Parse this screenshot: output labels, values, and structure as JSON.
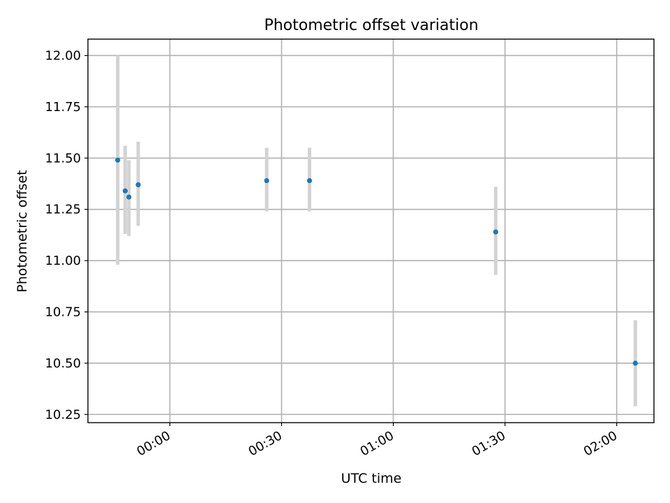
{
  "chart_data": {
    "type": "scatter",
    "title": "Photometric offset variation",
    "xlabel": "UTC time",
    "ylabel": "Photometric offset",
    "x_is_time": true,
    "xlim": [
      "23:38:00",
      "02:10:00"
    ],
    "ylim": [
      10.21,
      12.08
    ],
    "x_ticks": [
      "00:00",
      "00:30",
      "01:00",
      "01:30",
      "02:00"
    ],
    "y_ticks": [
      "10.25",
      "10.50",
      "10.75",
      "11.00",
      "11.25",
      "11.50",
      "11.75",
      "12.00"
    ],
    "grid": true,
    "marker_color": "#1f77b4",
    "errorbar_color": "#d3d3d3",
    "points": [
      {
        "time": "23:46:00",
        "y": 11.49,
        "yerr_low": 10.98,
        "yerr_high": 12.0
      },
      {
        "time": "23:48:00",
        "y": 11.34,
        "yerr_low": 11.13,
        "yerr_high": 11.56
      },
      {
        "time": "23:49:00",
        "y": 11.31,
        "yerr_low": 11.12,
        "yerr_high": 11.49
      },
      {
        "time": "23:51:30",
        "y": 11.37,
        "yerr_low": 11.17,
        "yerr_high": 11.58
      },
      {
        "time": "00:26:00",
        "y": 11.39,
        "yerr_low": 11.24,
        "yerr_high": 11.55
      },
      {
        "time": "00:37:30",
        "y": 11.39,
        "yerr_low": 11.24,
        "yerr_high": 11.55
      },
      {
        "time": "01:27:30",
        "y": 11.14,
        "yerr_low": 10.93,
        "yerr_high": 11.36
      },
      {
        "time": "02:05:00",
        "y": 10.5,
        "yerr_low": 10.29,
        "yerr_high": 10.71
      }
    ]
  }
}
